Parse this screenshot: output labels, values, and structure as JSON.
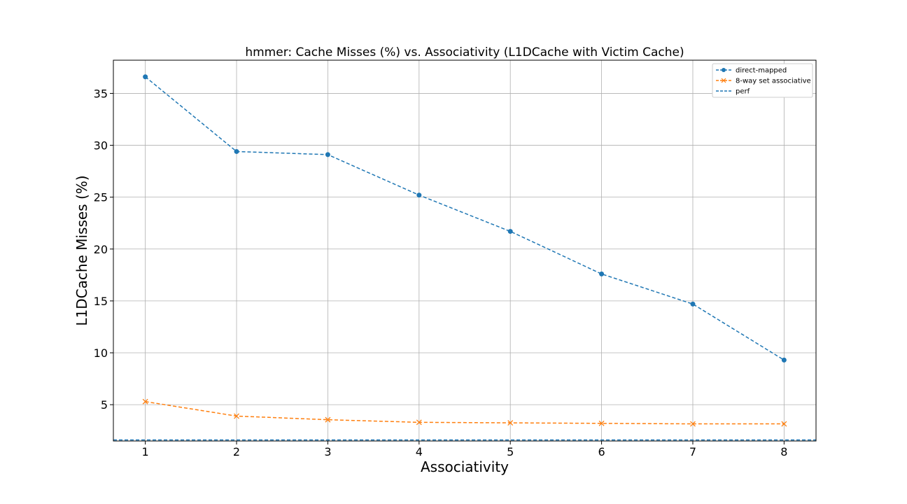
{
  "chart_data": {
    "type": "line",
    "title": "hmmer: Cache Misses (%) vs. Associativity (L1DCache with Victim Cache)",
    "xlabel": "Associativity",
    "ylabel": "L1DCache Misses (%)",
    "x": [
      1,
      2,
      3,
      4,
      5,
      6,
      7,
      8
    ],
    "xlim": [
      0.65,
      8.35
    ],
    "ylim": [
      1.5,
      38.2
    ],
    "yticks": [
      5,
      10,
      15,
      20,
      25,
      30,
      35
    ],
    "grid": true,
    "legend_position": "upper right",
    "series": [
      {
        "name": "direct-mapped",
        "values": [
          36.6,
          29.4,
          29.1,
          25.2,
          21.7,
          17.6,
          14.7,
          9.3
        ],
        "color": "#1f77b4",
        "marker": "circle",
        "linestyle": "dashed"
      },
      {
        "name": "8-way set associative",
        "values": [
          5.3,
          3.9,
          3.55,
          3.3,
          3.25,
          3.2,
          3.15,
          3.15
        ],
        "color": "#ff7f0e",
        "marker": "x",
        "linestyle": "dashed"
      },
      {
        "name": "perf",
        "hline": 1.6,
        "color": "#1f77b4",
        "linestyle": "dashed"
      }
    ]
  }
}
